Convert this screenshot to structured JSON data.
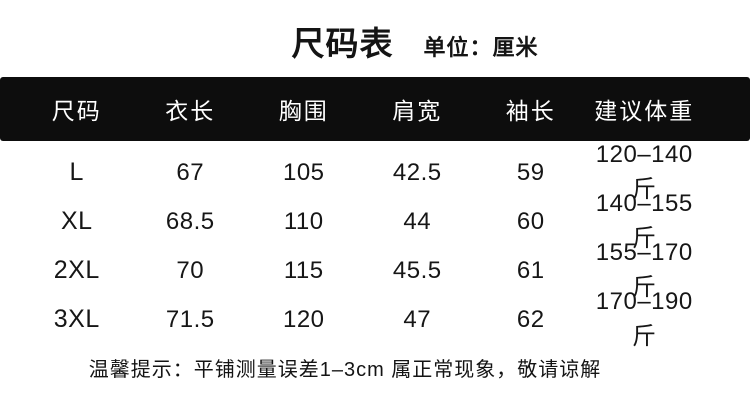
{
  "chart_data": {
    "type": "table",
    "title": "尺码表",
    "unit_label": "单位：厘米",
    "columns": [
      "尺码",
      "衣长",
      "胸围",
      "肩宽",
      "袖长",
      "建议体重"
    ],
    "rows": [
      [
        "L",
        "67",
        "105",
        "42.5",
        "59",
        "120–140斤"
      ],
      [
        "XL",
        "68.5",
        "110",
        "44",
        "60",
        "140–155斤"
      ],
      [
        "2XL",
        "70",
        "115",
        "45.5",
        "61",
        "155–170斤"
      ],
      [
        "3XL",
        "71.5",
        "120",
        "47",
        "62",
        "170–190斤"
      ]
    ],
    "footnote": "温馨提示：平铺测量误差1–3cm 属正常现象，敬请谅解",
    "layout": {
      "header_style": "black-bar-white-text",
      "grid_lines": false
    }
  },
  "colors": {
    "background": "#ffffff",
    "header_bg": "#0d0d0d",
    "header_text": "#ffffff",
    "body_text": "#151515"
  }
}
